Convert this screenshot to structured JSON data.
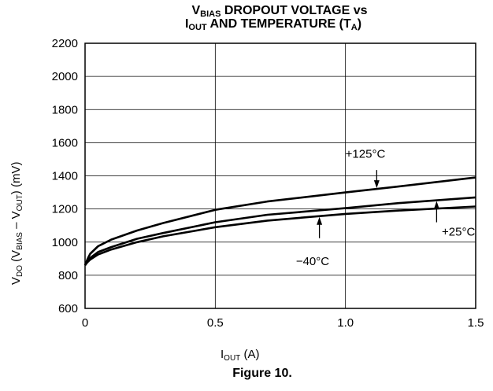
{
  "title": {
    "line1_pre": "V",
    "line1_sub": "BIAS",
    "line1_post": " DROPOUT VOLTAGE vs",
    "line2_pre": "I",
    "line2_sub": "OUT",
    "line2_mid": " AND TEMPERATURE (T",
    "line2_sub2": "A",
    "line2_post": ")"
  },
  "ylabel": {
    "p1": "V",
    "s1": "DO",
    "p2": " (V",
    "s2": "BIAS",
    "p3": " – V",
    "s3": "OUT",
    "p4": ") (mV)"
  },
  "xlabel": {
    "p1": "I",
    "s1": "OUT",
    "p2": " (A)"
  },
  "caption": "Figure 10.",
  "chart_data": {
    "type": "line",
    "xlim": [
      0,
      1.5
    ],
    "ylim": [
      600,
      2200
    ],
    "xticks": [
      "0",
      "0.5",
      "1.0",
      "1.5"
    ],
    "xtick_values": [
      0,
      0.5,
      1.0,
      1.5
    ],
    "yticks": [
      "600",
      "800",
      "1000",
      "1200",
      "1400",
      "1600",
      "1800",
      "2000",
      "2200"
    ],
    "ytick_values": [
      600,
      800,
      1000,
      1200,
      1400,
      1600,
      1800,
      2000,
      2200
    ],
    "grid": true,
    "series": [
      {
        "name": "+125°C",
        "x": [
          0.0,
          0.01,
          0.02,
          0.05,
          0.1,
          0.2,
          0.3,
          0.5,
          0.7,
          1.0,
          1.2,
          1.5
        ],
        "y": [
          860,
          900,
          930,
          975,
          1015,
          1070,
          1115,
          1195,
          1245,
          1300,
          1335,
          1390
        ]
      },
      {
        "name": "+25°C",
        "x": [
          0.0,
          0.01,
          0.02,
          0.05,
          0.1,
          0.2,
          0.3,
          0.5,
          0.7,
          1.0,
          1.2,
          1.5
        ],
        "y": [
          860,
          885,
          905,
          940,
          970,
          1020,
          1055,
          1120,
          1165,
          1205,
          1235,
          1270
        ]
      },
      {
        "name": "−40°C",
        "x": [
          0.0,
          0.01,
          0.02,
          0.05,
          0.1,
          0.2,
          0.3,
          0.5,
          0.7,
          1.0,
          1.2,
          1.5
        ],
        "y": [
          860,
          880,
          895,
          925,
          955,
          1000,
          1035,
          1090,
          1130,
          1170,
          1190,
          1215
        ]
      }
    ],
    "annotations": [
      {
        "text": "+125°C",
        "series": 0,
        "at_x": 1.12,
        "label_x": 1.0,
        "label_y": 1510
      },
      {
        "text": "+25°C",
        "series": 1,
        "at_x": 1.35,
        "label_x": 1.37,
        "label_y": 1040
      },
      {
        "text": "−40°C",
        "series": 2,
        "at_x": 0.9,
        "label_x": 0.81,
        "label_y": 860
      }
    ]
  }
}
